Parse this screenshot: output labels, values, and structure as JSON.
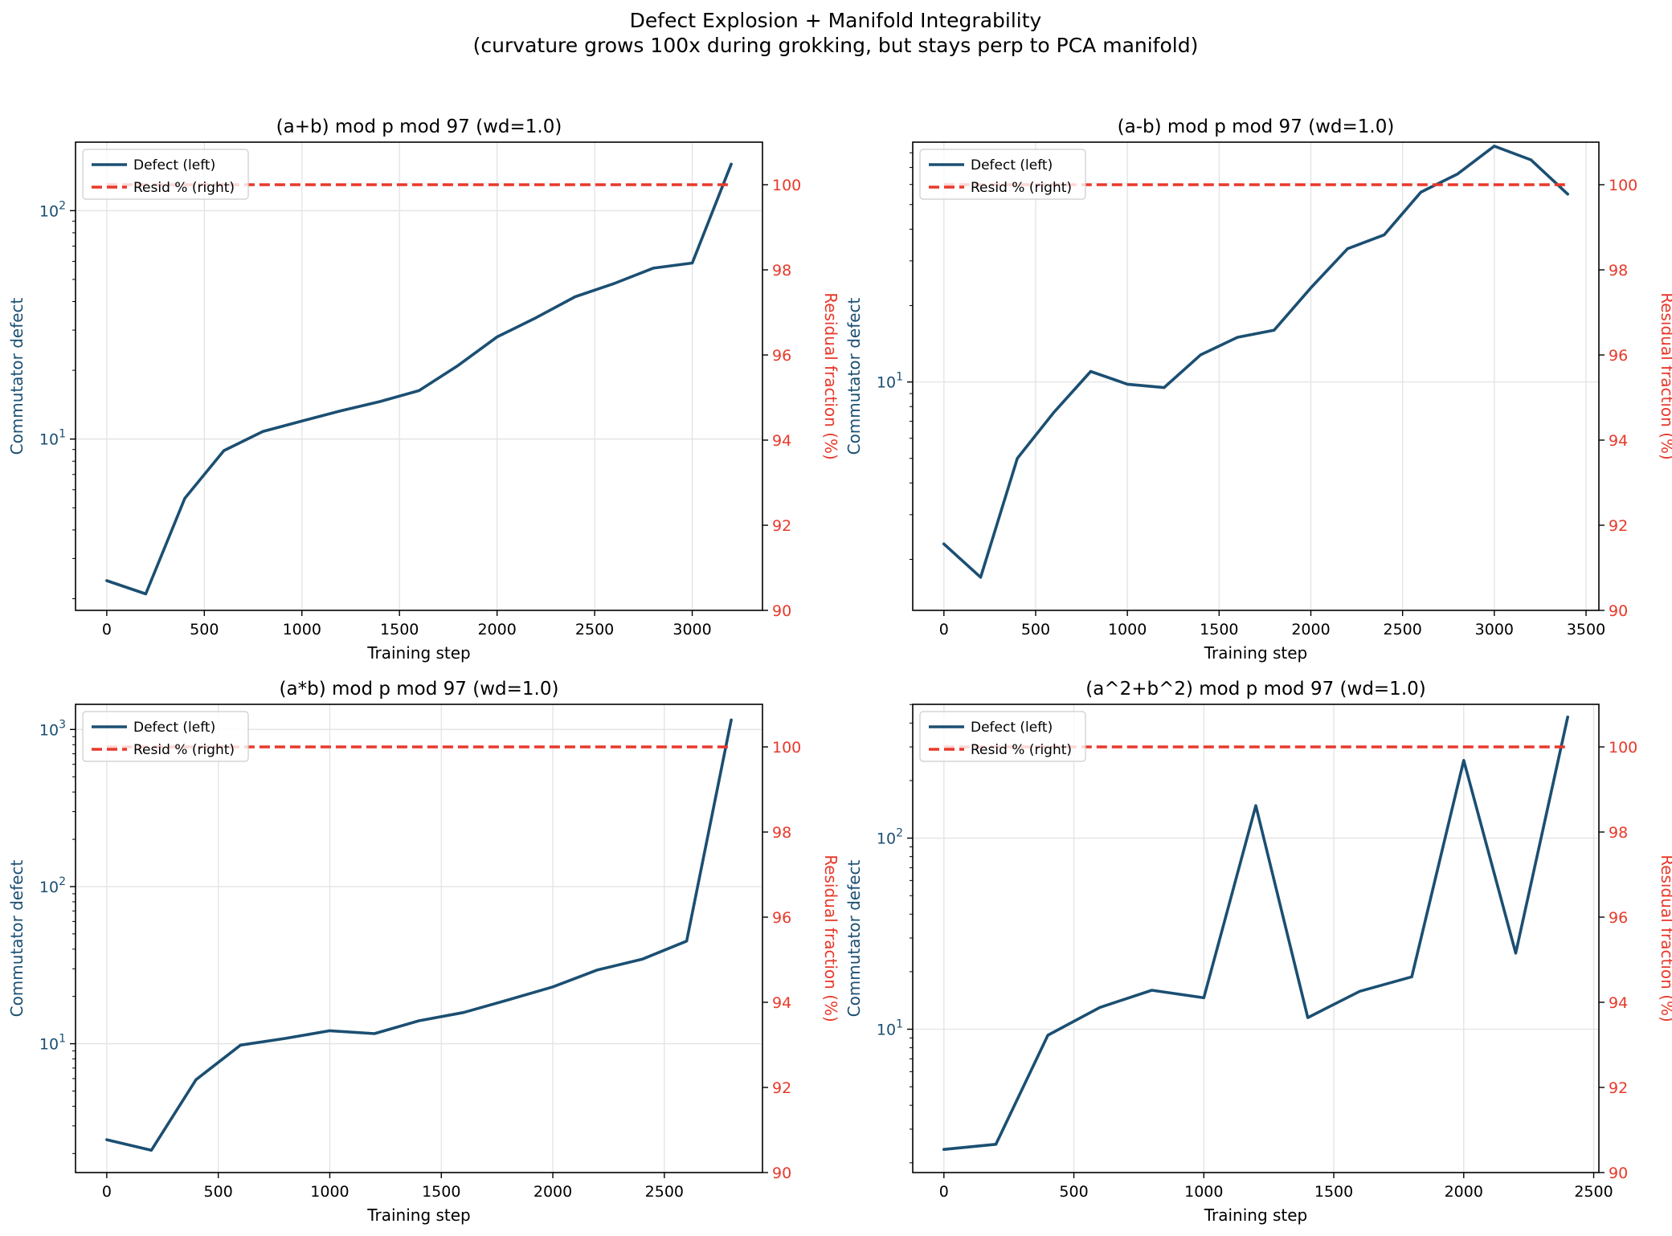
{
  "figure": {
    "title_line1": "Defect Explosion + Manifold Integrability",
    "title_line2": "(curvature grows 100x during grokking, but stays perp to PCA manifold)"
  },
  "colors": {
    "defect": "#1b4f72",
    "resid": "#e8392b",
    "grid": "#e3e3e3",
    "axis": "#000000"
  },
  "chart_data": [
    {
      "type": "line",
      "title": "(a+b) mod p mod 97 (wd=1.0)",
      "xlabel": "Training step",
      "ylabel_left": "Commutator defect",
      "ylabel_right": "Residual fraction (%)",
      "yscale_left": "log",
      "xlim": [
        -160,
        3360
      ],
      "ylim_left_log10": [
        0.25,
        2.3
      ],
      "ylim_right": [
        90,
        101
      ],
      "xticks": [
        0,
        500,
        1000,
        1500,
        2000,
        2500,
        3000
      ],
      "xtick_labels": [
        "0",
        "500",
        "1000",
        "1500",
        "2000",
        "2500",
        "3000"
      ],
      "yticks_left_exp": [
        1,
        2
      ],
      "ytick_labels_left": [
        "10",
        "10"
      ],
      "ytick_exps_left": [
        "1",
        "2"
      ],
      "yticks_right": [
        90,
        92,
        94,
        96,
        98,
        100
      ],
      "ytick_labels_right": [
        "90",
        "92",
        "94",
        "96",
        "98",
        "100"
      ],
      "legend": [
        "Defect (left)",
        "Resid % (right)"
      ],
      "legend_loc": "upper-left",
      "series": [
        {
          "name": "Defect (left)",
          "axis": "left",
          "x": [
            0,
            200,
            400,
            600,
            800,
            1000,
            1200,
            1400,
            1600,
            1800,
            2000,
            2200,
            2400,
            2600,
            2800,
            3000,
            3200
          ],
          "values": [
            2.4,
            2.1,
            5.5,
            8.9,
            10.8,
            12.0,
            13.3,
            14.6,
            16.3,
            21,
            28,
            34,
            42,
            48,
            56,
            59,
            160
          ]
        },
        {
          "name": "Resid % (right)",
          "axis": "right",
          "x": [
            0,
            3200
          ],
          "values": [
            100,
            100
          ]
        }
      ]
    },
    {
      "type": "line",
      "title": "(a-b) mod p mod 97 (wd=1.0)",
      "xlabel": "Training step",
      "ylabel_left": "Commutator defect",
      "ylabel_right": "Residual fraction (%)",
      "yscale_left": "log",
      "xlim": [
        -170,
        3570
      ],
      "ylim_left_log10": [
        0.1,
        1.945
      ],
      "ylim_right": [
        90,
        101
      ],
      "xticks": [
        0,
        500,
        1000,
        1500,
        2000,
        2500,
        3000,
        3500
      ],
      "xtick_labels": [
        "0",
        "500",
        "1000",
        "1500",
        "2000",
        "2500",
        "3000",
        "3500"
      ],
      "yticks_left_exp": [
        1
      ],
      "ytick_labels_left": [
        "10"
      ],
      "ytick_exps_left": [
        "1"
      ],
      "yticks_right": [
        90,
        92,
        94,
        96,
        98,
        100
      ],
      "ytick_labels_right": [
        "90",
        "92",
        "94",
        "96",
        "98",
        "100"
      ],
      "legend": [
        "Defect (left)",
        "Resid % (right)"
      ],
      "legend_loc": "upper-left",
      "series": [
        {
          "name": "Defect (left)",
          "axis": "left",
          "x": [
            0,
            200,
            400,
            600,
            800,
            1000,
            1200,
            1400,
            1600,
            1800,
            2000,
            2200,
            2400,
            2600,
            2800,
            3000,
            3200,
            3400
          ],
          "values": [
            2.3,
            1.7,
            5.0,
            7.6,
            11.0,
            9.8,
            9.5,
            12.8,
            15.0,
            16.0,
            23.5,
            33.5,
            38,
            56,
            66,
            85,
            75,
            55
          ]
        },
        {
          "name": "Resid % (right)",
          "axis": "right",
          "x": [
            0,
            3400
          ],
          "values": [
            100,
            100
          ]
        }
      ]
    },
    {
      "type": "line",
      "title": "(a*b) mod p mod 97 (wd=1.0)",
      "xlabel": "Training step",
      "ylabel_left": "Commutator defect",
      "ylabel_right": "Residual fraction (%)",
      "yscale_left": "log",
      "xlim": [
        -140,
        2940
      ],
      "ylim_left_log10": [
        0.18,
        3.16
      ],
      "ylim_right": [
        90,
        101
      ],
      "xticks": [
        0,
        500,
        1000,
        1500,
        2000,
        2500
      ],
      "xtick_labels": [
        "0",
        "500",
        "1000",
        "1500",
        "2000",
        "2500"
      ],
      "yticks_left_exp": [
        1,
        2,
        3
      ],
      "ytick_labels_left": [
        "10",
        "10",
        "10"
      ],
      "ytick_exps_left": [
        "1",
        "2",
        "3"
      ],
      "yticks_right": [
        90,
        92,
        94,
        96,
        98,
        100
      ],
      "ytick_labels_right": [
        "90",
        "92",
        "94",
        "96",
        "98",
        "100"
      ],
      "legend": [
        "Defect (left)",
        "Resid % (right)"
      ],
      "legend_loc": "upper-left",
      "series": [
        {
          "name": "Defect (left)",
          "axis": "left",
          "x": [
            0,
            200,
            400,
            600,
            800,
            1000,
            1200,
            1400,
            1600,
            1800,
            2000,
            2200,
            2400,
            2600,
            2800
          ],
          "values": [
            2.45,
            2.1,
            5.9,
            9.8,
            10.8,
            12.1,
            11.6,
            14.0,
            15.8,
            19,
            23,
            29.5,
            34.5,
            45,
            1150
          ]
        },
        {
          "name": "Resid % (right)",
          "axis": "right",
          "x": [
            0,
            2800
          ],
          "values": [
            100,
            100
          ]
        }
      ]
    },
    {
      "type": "line",
      "title": "(a^2+b^2) mod p mod 97 (wd=1.0)",
      "xlabel": "Training step",
      "ylabel_left": "Commutator defect",
      "ylabel_right": "Residual fraction (%)",
      "yscale_left": "log",
      "xlim": [
        -120,
        2520
      ],
      "ylim_left_log10": [
        0.25,
        2.7
      ],
      "ylim_right": [
        90,
        101
      ],
      "xticks": [
        0,
        500,
        1000,
        1500,
        2000,
        2500
      ],
      "xtick_labels": [
        "0",
        "500",
        "1000",
        "1500",
        "2000",
        "2500"
      ],
      "yticks_left_exp": [
        1,
        2
      ],
      "ytick_labels_left": [
        "10",
        "10"
      ],
      "ytick_exps_left": [
        "1",
        "2"
      ],
      "yticks_right": [
        90,
        92,
        94,
        96,
        98,
        100
      ],
      "ytick_labels_right": [
        "90",
        "92",
        "94",
        "96",
        "98",
        "100"
      ],
      "legend": [
        "Defect (left)",
        "Resid % (right)"
      ],
      "legend_loc": "upper-left",
      "series": [
        {
          "name": "Defect (left)",
          "axis": "left",
          "x": [
            0,
            200,
            400,
            600,
            800,
            1000,
            1200,
            1400,
            1600,
            1800,
            2000,
            2200,
            2400
          ],
          "values": [
            2.35,
            2.5,
            9.3,
            13.0,
            16.0,
            14.6,
            148,
            11.5,
            15.8,
            18.8,
            255,
            25,
            430
          ]
        },
        {
          "name": "Resid % (right)",
          "axis": "right",
          "x": [
            0,
            2400
          ],
          "values": [
            100,
            100
          ]
        }
      ]
    }
  ]
}
